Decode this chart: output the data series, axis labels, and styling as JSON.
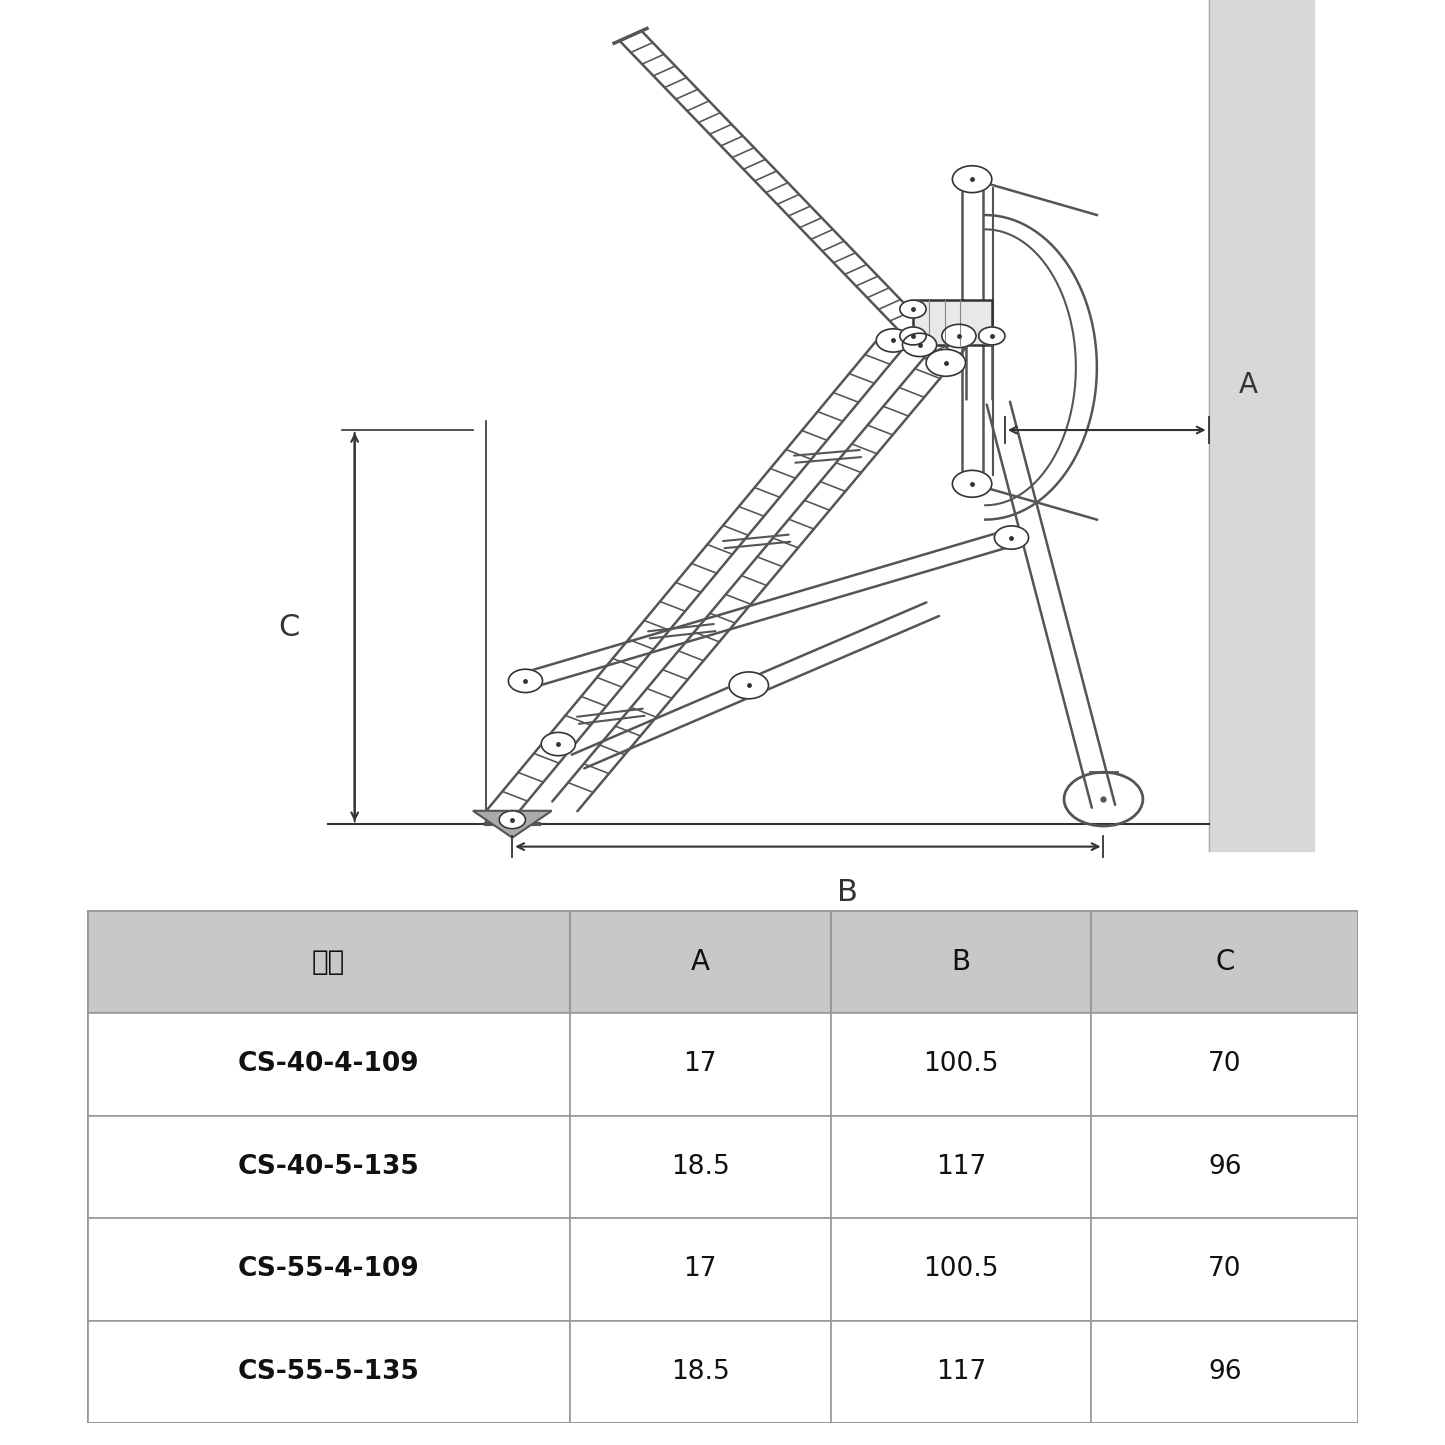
{
  "bg_color": "#ffffff",
  "wall_color": "#d0d0d0",
  "line_color": "#333333",
  "tube_color": "#555555",
  "table_header_bg": "#c8c8c8",
  "table_row_bg": "#ffffff",
  "table_border_color": "#999999",
  "table_data": {
    "headers": [
      "型式",
      "A",
      "B",
      "C"
    ],
    "rows": [
      [
        "CS-40-4-109",
        "17",
        "100.5",
        "70"
      ],
      [
        "CS-40-5-135",
        "18.5",
        "117",
        "96"
      ],
      [
        "CS-55-4-109",
        "17",
        "100.5",
        "70"
      ],
      [
        "CS-55-5-135",
        "18.5",
        "117",
        "96"
      ]
    ]
  }
}
